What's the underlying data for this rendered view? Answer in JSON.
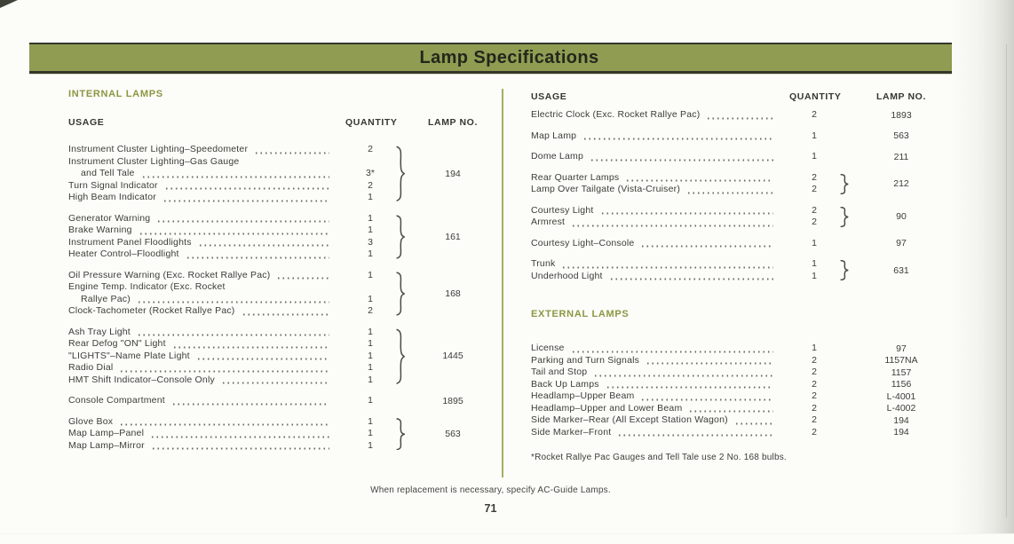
{
  "banner": {
    "title": "Lamp Specifications"
  },
  "table_headers": {
    "usage": "USAGE",
    "quantity": "QUANTITY",
    "lamp_no": "LAMP NO."
  },
  "sections": {
    "internal_label": "INTERNAL LAMPS",
    "external_label": "EXTERNAL LAMPS"
  },
  "left_column": {
    "groups": [
      {
        "brace": true,
        "lamp_no": "194",
        "rows": [
          {
            "text": "Instrument Cluster Lighting–Speedometer",
            "qty": "2",
            "leader": true
          },
          {
            "text": "Instrument Cluster Lighting–Gas Gauge",
            "qty": "",
            "leader": false
          },
          {
            "text": "and Tell Tale",
            "qty": "3*",
            "leader": true,
            "indent": true
          },
          {
            "text": "Turn Signal Indicator",
            "qty": "2",
            "leader": true
          },
          {
            "text": "High Beam Indicator",
            "qty": "1",
            "leader": true
          }
        ]
      },
      {
        "brace": true,
        "lamp_no": "161",
        "rows": [
          {
            "text": "Generator Warning",
            "qty": "1",
            "leader": true
          },
          {
            "text": "Brake Warning",
            "qty": "1",
            "leader": true
          },
          {
            "text": "Instrument Panel Floodlights",
            "qty": "3",
            "leader": true
          },
          {
            "text": "Heater Control–Floodlight",
            "qty": "1",
            "leader": true
          }
        ]
      },
      {
        "brace": true,
        "lamp_no": "168",
        "rows": [
          {
            "text": "Oil Pressure Warning (Exc. Rocket Rallye Pac)",
            "qty": "1",
            "leader": true
          },
          {
            "text": "Engine Temp. Indicator (Exc. Rocket",
            "qty": "",
            "leader": false
          },
          {
            "text": "Rallye Pac)",
            "qty": "1",
            "leader": true,
            "indent": true
          },
          {
            "text": "Clock-Tachometer (Rocket Rallye Pac)",
            "qty": "2",
            "leader": true
          }
        ]
      },
      {
        "brace": true,
        "lamp_no": "1445",
        "rows": [
          {
            "text": "Ash Tray Light",
            "qty": "1",
            "leader": true
          },
          {
            "text": "Rear Defog \"ON\" Light",
            "qty": "1",
            "leader": true
          },
          {
            "text": "\"LIGHTS\"–Name Plate Light",
            "qty": "1",
            "leader": true
          },
          {
            "text": "Radio Dial",
            "qty": "1",
            "leader": true
          },
          {
            "text": "HMT Shift Indicator–Console Only",
            "qty": "1",
            "leader": true
          }
        ]
      },
      {
        "brace": false,
        "lamp_no": "1895",
        "rows": [
          {
            "text": "Console Compartment",
            "qty": "1",
            "leader": true
          }
        ]
      },
      {
        "brace": true,
        "lamp_no": "563",
        "rows": [
          {
            "text": "Glove Box",
            "qty": "1",
            "leader": true
          },
          {
            "text": "Map Lamp–Panel",
            "qty": "1",
            "leader": true
          },
          {
            "text": "Map Lamp–Mirror",
            "qty": "1",
            "leader": true
          }
        ]
      }
    ]
  },
  "right_column": {
    "internal_groups": [
      {
        "brace": false,
        "lamp_no": "1893",
        "rows": [
          {
            "text": "Electric Clock (Exc. Rocket Rallye Pac)",
            "qty": "2",
            "leader": true
          }
        ]
      },
      {
        "brace": false,
        "lamp_no": "563",
        "rows": [
          {
            "text": "Map Lamp",
            "qty": "1",
            "leader": true
          }
        ]
      },
      {
        "brace": false,
        "lamp_no": "211",
        "rows": [
          {
            "text": "Dome Lamp",
            "qty": "1",
            "leader": true
          }
        ]
      },
      {
        "brace": true,
        "lamp_no": "212",
        "rows": [
          {
            "text": "Rear Quarter Lamps",
            "qty": "2",
            "leader": true
          },
          {
            "text": "Lamp Over Tailgate (Vista-Cruiser)",
            "qty": "2",
            "leader": true
          }
        ]
      },
      {
        "brace": true,
        "lamp_no": "90",
        "rows": [
          {
            "text": "Courtesy Light",
            "qty": "2",
            "leader": true
          },
          {
            "text": "Armrest",
            "qty": "2",
            "leader": true
          }
        ]
      },
      {
        "brace": false,
        "lamp_no": "97",
        "rows": [
          {
            "text": "Courtesy Light–Console",
            "qty": "1",
            "leader": true
          }
        ]
      },
      {
        "brace": true,
        "lamp_no": "631",
        "rows": [
          {
            "text": "Trunk",
            "qty": "1",
            "leader": true
          },
          {
            "text": "Underhood Light",
            "qty": "1",
            "leader": true
          }
        ]
      }
    ],
    "external_groups": [
      {
        "brace": false,
        "lamp_no": "97",
        "rows": [
          {
            "text": "License",
            "qty": "1",
            "leader": true
          }
        ]
      },
      {
        "brace": false,
        "lamp_no": "1157NA",
        "rows": [
          {
            "text": "Parking and Turn Signals",
            "qty": "2",
            "leader": true
          }
        ]
      },
      {
        "brace": false,
        "lamp_no": "1157",
        "rows": [
          {
            "text": "Tail and Stop",
            "qty": "2",
            "leader": true
          }
        ]
      },
      {
        "brace": false,
        "lamp_no": "1156",
        "rows": [
          {
            "text": "Back Up Lamps",
            "qty": "2",
            "leader": true
          }
        ]
      },
      {
        "brace": false,
        "lamp_no": "L-4001",
        "rows": [
          {
            "text": "Headlamp–Upper Beam",
            "qty": "2",
            "leader": true
          }
        ]
      },
      {
        "brace": false,
        "lamp_no": "L-4002",
        "rows": [
          {
            "text": "Headlamp–Upper and Lower Beam",
            "qty": "2",
            "leader": true
          }
        ]
      },
      {
        "brace": false,
        "lamp_no": "194",
        "rows": [
          {
            "text": "Side Marker–Rear (All Except Station Wagon)",
            "qty": "2",
            "leader": true
          }
        ]
      },
      {
        "brace": false,
        "lamp_no": "194",
        "rows": [
          {
            "text": "Side Marker–Front",
            "qty": "2",
            "leader": true
          }
        ]
      }
    ]
  },
  "footnote": "*Rocket Rallye Pac Gauges and Tell Tale use 2 No. 168 bulbs.",
  "footer_note": "When replacement is necessary, specify AC-Guide Lamps.",
  "page_number": "71",
  "colors": {
    "banner_olive": "#8f9c52",
    "banner_border": "#33372a",
    "section_header_olive": "#8c9742",
    "body_text": "#3c3d37",
    "divider_olive": "#a3b062"
  }
}
